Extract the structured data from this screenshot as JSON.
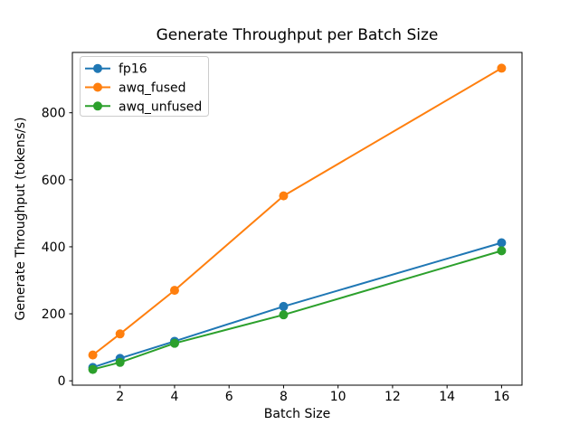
{
  "figure": {
    "background": "#ffffff"
  },
  "chart_data": {
    "type": "line",
    "title": "Generate Throughput per Batch Size",
    "xlabel": "Batch Size",
    "ylabel": "Generate Throughput (tokens/s)",
    "x": [
      1,
      2,
      4,
      8,
      16
    ],
    "series": [
      {
        "name": "fp16",
        "color": "#1f77b4",
        "values": [
          40,
          67,
          118,
          222,
          412
        ]
      },
      {
        "name": "awq_fused",
        "color": "#ff7f0e",
        "values": [
          77,
          140,
          270,
          552,
          933
        ]
      },
      {
        "name": "awq_unfused",
        "color": "#2ca02c",
        "values": [
          34,
          55,
          112,
          197,
          388
        ]
      }
    ],
    "xlim": [
      0.25,
      16.75
    ],
    "ylim": [
      -13,
      980
    ],
    "xticks": [
      2,
      4,
      6,
      8,
      10,
      12,
      14,
      16
    ],
    "yticks": [
      0,
      200,
      400,
      600,
      800
    ],
    "grid": false,
    "marker": "o",
    "legend": {
      "position": "upper left",
      "entries": [
        "fp16",
        "awq_fused",
        "awq_unfused"
      ]
    },
    "axis_color": "#000000",
    "legend_border_color": "#cccccc"
  }
}
